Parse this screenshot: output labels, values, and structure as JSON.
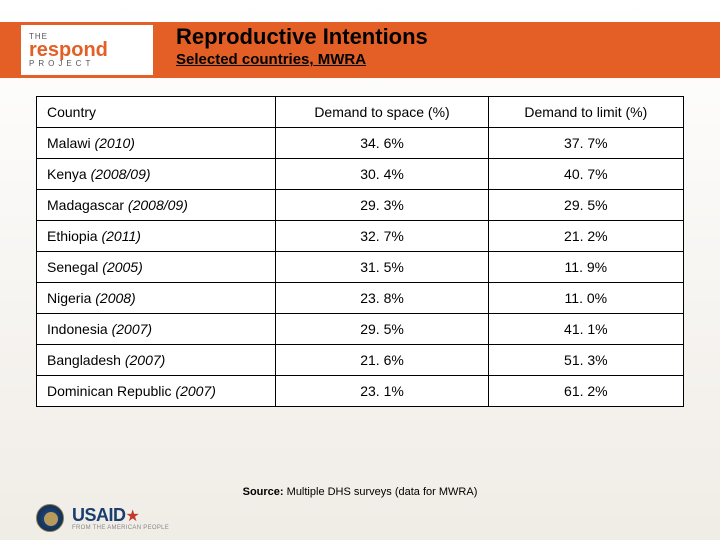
{
  "logo": {
    "the": "THE",
    "brand": "respond",
    "project": "PROJECT"
  },
  "header": {
    "title": "Reproductive Intentions",
    "subtitle": "Selected countries, MWRA"
  },
  "table": {
    "columns": [
      "Country",
      "Demand to space (%)",
      "Demand to limit (%)"
    ],
    "rows": [
      {
        "country": "Malawi",
        "year": "(2010)",
        "space": "34. 6%",
        "limit": "37. 7%"
      },
      {
        "country": "Kenya",
        "year": "(2008/09)",
        "space": "30. 4%",
        "limit": "40. 7%"
      },
      {
        "country": "Madagascar",
        "year": "(2008/09)",
        "space": "29. 3%",
        "limit": "29. 5%"
      },
      {
        "country": "Ethiopia",
        "year": "(2011)",
        "space": "32. 7%",
        "limit": "21. 2%"
      },
      {
        "country": "Senegal",
        "year": "(2005)",
        "space": "31. 5%",
        "limit": "11. 9%"
      },
      {
        "country": "Nigeria",
        "year": "(2008)",
        "space": "23. 8%",
        "limit": "11. 0%"
      },
      {
        "country": "Indonesia",
        "year": "(2007)",
        "space": "29. 5%",
        "limit": "41. 1%"
      },
      {
        "country": "Bangladesh",
        "year": "(2007)",
        "space": "21. 6%",
        "limit": "51. 3%"
      },
      {
        "country": "Dominican Republic",
        "year": "(2007)",
        "space": "23. 1%",
        "limit": "61. 2%"
      }
    ]
  },
  "source": {
    "label": "Source:",
    "text": "Multiple DHS surveys (data for MWRA)"
  },
  "footer": {
    "usaid": "USAID",
    "usaid_sub": "FROM THE AMERICAN PEOPLE"
  },
  "colors": {
    "accent": "#e35f26",
    "text": "#000000",
    "usaid_blue": "#1a3e6e",
    "usaid_red": "#c0392b"
  }
}
